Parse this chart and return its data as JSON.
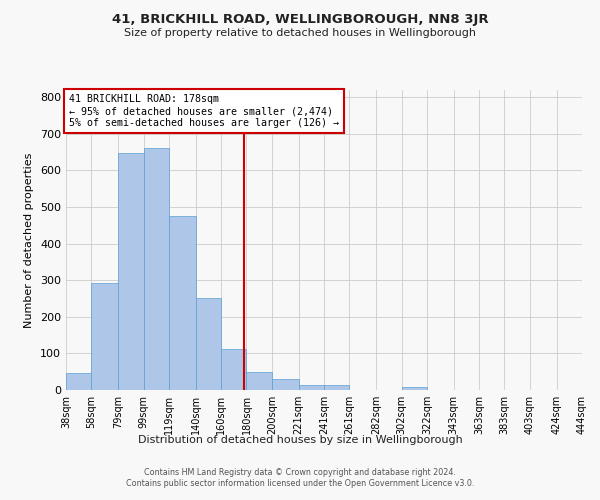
{
  "title": "41, BRICKHILL ROAD, WELLINGBOROUGH, NN8 3JR",
  "subtitle": "Size of property relative to detached houses in Wellingborough",
  "xlabel": "Distribution of detached houses by size in Wellingborough",
  "ylabel": "Number of detached properties",
  "footer_line1": "Contains HM Land Registry data © Crown copyright and database right 2024.",
  "footer_line2": "Contains public sector information licensed under the Open Government Licence v3.0.",
  "bin_labels": [
    "38sqm",
    "58sqm",
    "79sqm",
    "99sqm",
    "119sqm",
    "140sqm",
    "160sqm",
    "180sqm",
    "200sqm",
    "221sqm",
    "241sqm",
    "261sqm",
    "282sqm",
    "302sqm",
    "322sqm",
    "343sqm",
    "363sqm",
    "383sqm",
    "403sqm",
    "424sqm",
    "444sqm"
  ],
  "bin_edges": [
    38,
    58,
    79,
    99,
    119,
    140,
    160,
    180,
    200,
    221,
    241,
    261,
    282,
    302,
    322,
    343,
    363,
    383,
    403,
    424,
    444
  ],
  "bar_heights": [
    47,
    293,
    648,
    662,
    476,
    252,
    113,
    48,
    29,
    15,
    13,
    0,
    0,
    8,
    0,
    0,
    0,
    0,
    0,
    0,
    7
  ],
  "bar_color": "#aec6e8",
  "bar_edge_color": "#5a9fd4",
  "property_size": 178,
  "vline_color": "#cc0000",
  "annotation_title": "41 BRICKHILL ROAD: 178sqm",
  "annotation_line1": "← 95% of detached houses are smaller (2,474)",
  "annotation_line2": "5% of semi-detached houses are larger (126) →",
  "annotation_box_color": "#ffffff",
  "annotation_box_edge": "#cc0000",
  "ylim": [
    0,
    820
  ],
  "yticks": [
    0,
    100,
    200,
    300,
    400,
    500,
    600,
    700,
    800
  ],
  "background_color": "#f8f8f8",
  "grid_color": "#cccccc"
}
